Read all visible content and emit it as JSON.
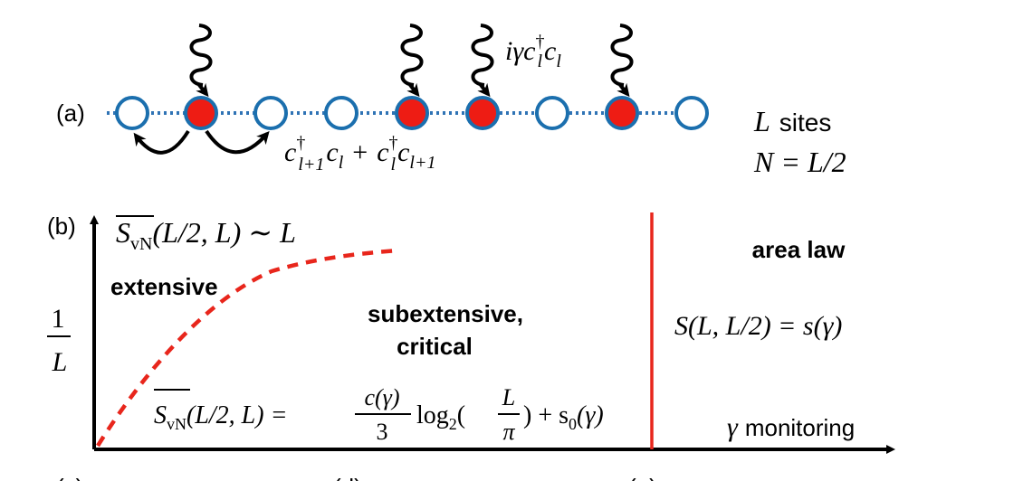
{
  "panel_a": {
    "label": "(a)",
    "sites": [
      {
        "occupied": false
      },
      {
        "occupied": true
      },
      {
        "occupied": false
      },
      {
        "occupied": false
      },
      {
        "occupied": true
      },
      {
        "occupied": true
      },
      {
        "occupied": false
      },
      {
        "occupied": true
      },
      {
        "occupied": false
      }
    ],
    "hopping_term": {
      "left": "c",
      "left_sup": "†",
      "left_sub": "l+1",
      "mid": "c",
      "mid_sub": "l",
      "plus": "+",
      "right": "c",
      "right_sup": "†",
      "right_sub": "l",
      "end": "c",
      "end_sub": "l+1"
    },
    "monitor_term": {
      "pre": "iγc",
      "sup": "†",
      "sub1": "l",
      "c2": "c",
      "sub2": "l"
    },
    "sites_label": {
      "sym": "L",
      "text": "sites"
    },
    "filling_label": "N = L/2",
    "colors": {
      "occupied": "#ee1c14",
      "empty_stroke": "#1b6fae",
      "chain": "#2f73b5",
      "arrow": "#000000"
    }
  },
  "panel_b": {
    "label": "(b)",
    "y_axis_label_num": "1",
    "y_axis_label_den": "L",
    "x_axis_label_sym": "γ",
    "x_axis_label_text": "monitoring",
    "region_extensive": "extensive",
    "extensive_formula": {
      "S": "S",
      "sub": "vN",
      "args": "(L/2, L) ∼ L"
    },
    "region_critical_line1": "subextensive,",
    "region_critical_line2": "critical",
    "critical_formula": {
      "S": "S",
      "sub": "vN",
      "args": "(L/2, L) =",
      "frac_num": "c(γ)",
      "frac_den": "3",
      "log": "log",
      "log_sub": "2",
      "lpar": "(",
      "inner_num": "L",
      "inner_den": "π",
      "rest": ") + s",
      "rest_sub": "0",
      "tail": "(γ)"
    },
    "region_area": "area law",
    "area_formula": "S(L, L/2) = s(γ)",
    "colors": {
      "boundary_dashed": "#e8261c",
      "boundary_solid": "#e8261c",
      "axis": "#000000"
    }
  },
  "bottom_labels": [
    "(c)",
    "(d)",
    "(e)"
  ]
}
